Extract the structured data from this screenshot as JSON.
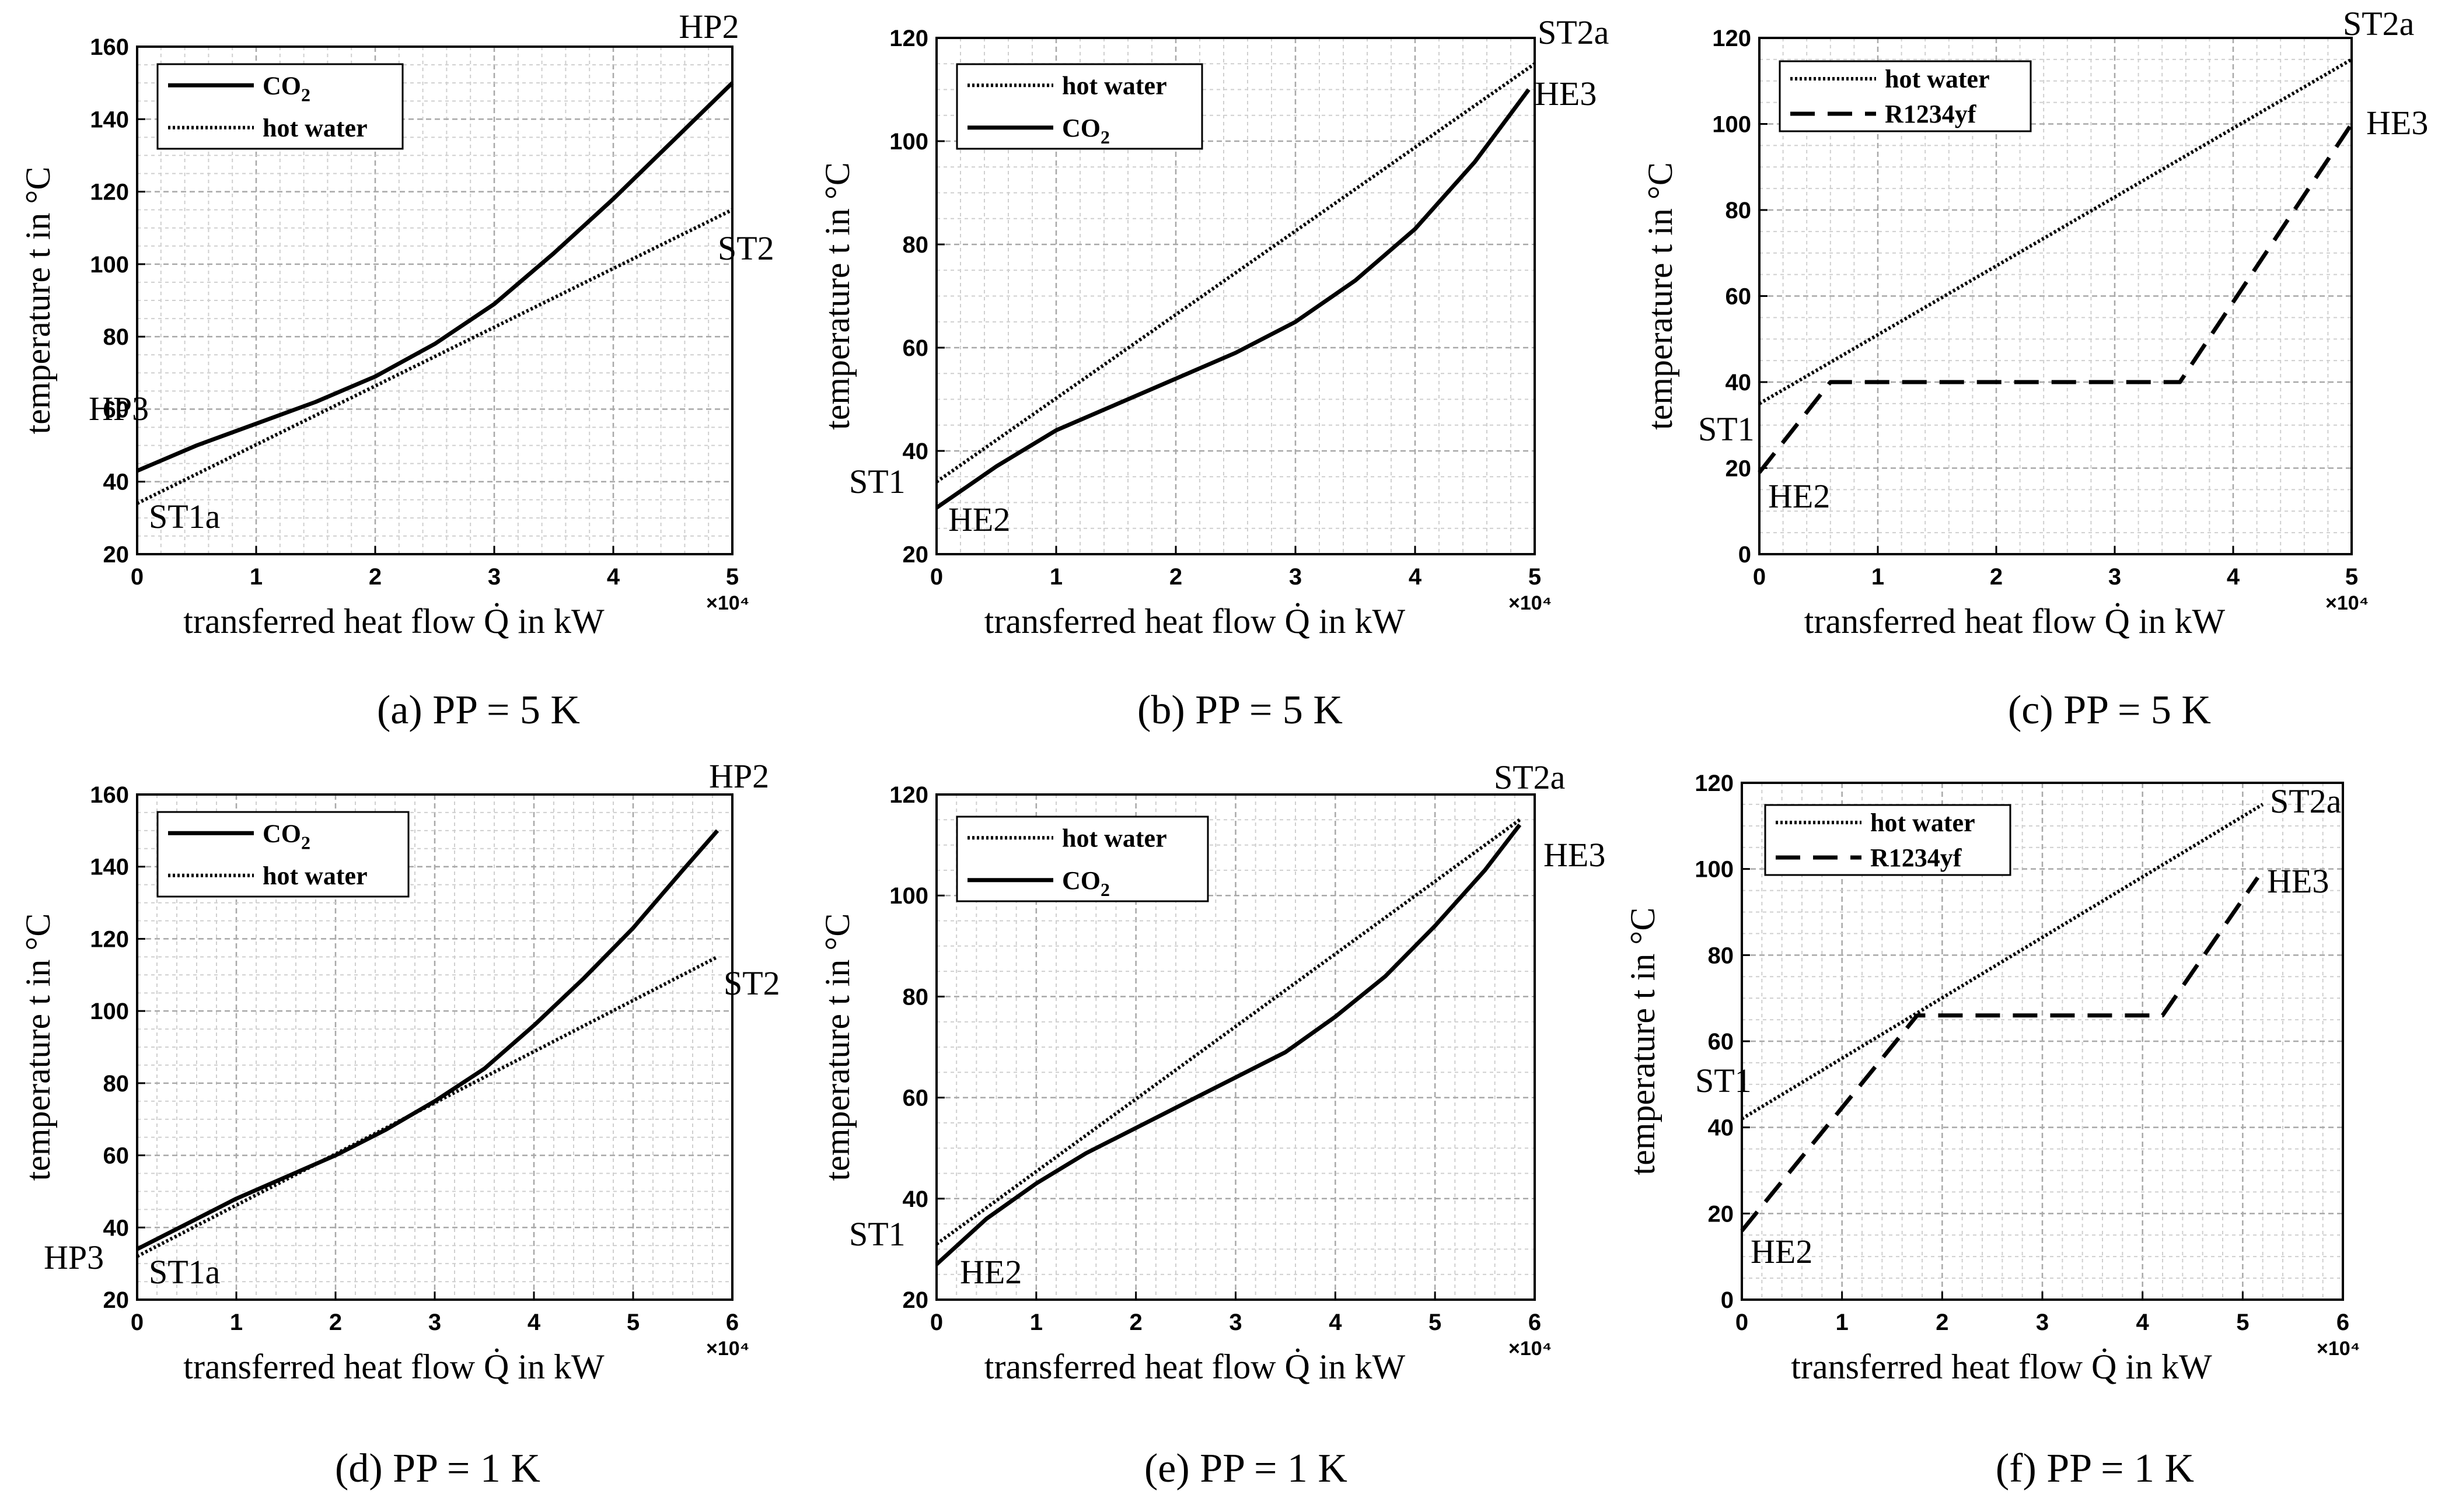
{
  "chart_data": [
    {
      "id": "a",
      "type": "line",
      "caption": "(a) PP = 5 K",
      "xlabel": "transferred heat flow Q̇ in kW",
      "ylabel": "temperature t in °C",
      "x_multiplier": "×10⁴",
      "xlim": [
        0,
        5
      ],
      "ylim": [
        20,
        160
      ],
      "xticks": [
        "0",
        "1",
        "2",
        "3",
        "4",
        "5"
      ],
      "yticks": [
        "20",
        "40",
        "60",
        "80",
        "100",
        "120",
        "140",
        "160"
      ],
      "series": [
        {
          "name": "CO₂",
          "style": "solid",
          "x": [
            0,
            0.5,
            1,
            1.5,
            2,
            2.5,
            3,
            3.5,
            4,
            4.5,
            5
          ],
          "y": [
            43,
            50,
            56,
            62,
            69,
            78,
            89,
            103,
            118,
            134,
            150
          ]
        },
        {
          "name": "hot water",
          "style": "dotted",
          "x": [
            0,
            5
          ],
          "y": [
            34,
            115
          ]
        }
      ],
      "annotations": [
        "HP2",
        "ST2",
        "HP3",
        "ST1a"
      ]
    },
    {
      "id": "b",
      "type": "line",
      "caption": "(b) PP = 5 K",
      "xlabel": "transferred heat flow Q̇ in kW",
      "ylabel": "temperature t in °C",
      "x_multiplier": "×10⁴",
      "xlim": [
        0,
        5
      ],
      "ylim": [
        20,
        120
      ],
      "xticks": [
        "0",
        "1",
        "2",
        "3",
        "4",
        "5"
      ],
      "yticks": [
        "20",
        "40",
        "60",
        "80",
        "100",
        "120"
      ],
      "series": [
        {
          "name": "hot water",
          "style": "dotted",
          "x": [
            0,
            5
          ],
          "y": [
            34,
            115
          ]
        },
        {
          "name": "CO₂",
          "style": "solid",
          "x": [
            0,
            0.5,
            1,
            1.5,
            2,
            2.5,
            3,
            3.5,
            4,
            4.5,
            4.95
          ],
          "y": [
            29,
            37,
            44,
            49,
            54,
            59,
            65,
            73,
            83,
            96,
            110
          ]
        }
      ],
      "annotations": [
        "ST2a",
        "HE3",
        "ST1",
        "HE2"
      ]
    },
    {
      "id": "c",
      "type": "line",
      "caption": "(c) PP =  5 K",
      "xlabel": "transferred heat flow Q̇ in kW",
      "ylabel": "temperature t in °C",
      "x_multiplier": "×10⁴",
      "xlim": [
        0,
        5
      ],
      "ylim": [
        0,
        120
      ],
      "xticks": [
        "0",
        "1",
        "2",
        "3",
        "4",
        "5"
      ],
      "yticks": [
        "0",
        "20",
        "40",
        "60",
        "80",
        "100",
        "120"
      ],
      "series": [
        {
          "name": "hot water",
          "style": "dotted",
          "x": [
            0,
            5
          ],
          "y": [
            35,
            115
          ]
        },
        {
          "name": "R1234yf",
          "style": "dashed",
          "x": [
            0,
            0.6,
            3.55,
            5
          ],
          "y": [
            19,
            40,
            40,
            100
          ]
        }
      ],
      "annotations": [
        "ST2a",
        "HE3",
        "ST1",
        "HE2"
      ]
    },
    {
      "id": "d",
      "type": "line",
      "caption": "(d) PP = 1 K",
      "xlabel": "transferred heat flow Q̇ in kW",
      "ylabel": "temperature t in °C",
      "x_multiplier": "×10⁴",
      "xlim": [
        0,
        6
      ],
      "ylim": [
        20,
        160
      ],
      "xticks": [
        "0",
        "1",
        "2",
        "3",
        "4",
        "5",
        "6"
      ],
      "yticks": [
        "20",
        "40",
        "60",
        "80",
        "100",
        "120",
        "140",
        "160"
      ],
      "series": [
        {
          "name": "CO₂",
          "style": "solid",
          "x": [
            0,
            0.5,
            1,
            1.5,
            2,
            2.5,
            3,
            3.5,
            4,
            4.5,
            5,
            5.5,
            5.85
          ],
          "y": [
            34,
            41,
            48,
            54,
            60,
            67,
            75,
            84,
            96,
            109,
            123,
            139,
            150
          ]
        },
        {
          "name": "hot water",
          "style": "dotted",
          "x": [
            0,
            5.85
          ],
          "y": [
            32,
            115
          ]
        }
      ],
      "annotations": [
        "HP2",
        "ST2",
        "HP3",
        "ST1a"
      ]
    },
    {
      "id": "e",
      "type": "line",
      "caption": "(e) PP = 1 K",
      "xlabel": "transferred heat flow Q̇ in kW",
      "ylabel": "temperature t in °C",
      "x_multiplier": "×10⁴",
      "xlim": [
        0,
        6
      ],
      "ylim": [
        20,
        120
      ],
      "xticks": [
        "0",
        "1",
        "2",
        "3",
        "4",
        "5",
        "6"
      ],
      "yticks": [
        "20",
        "40",
        "60",
        "80",
        "100",
        "120"
      ],
      "series": [
        {
          "name": "hot water",
          "style": "dotted",
          "x": [
            0,
            5.85
          ],
          "y": [
            31,
            115
          ]
        },
        {
          "name": "CO₂",
          "style": "solid",
          "x": [
            0,
            0.5,
            1,
            1.5,
            2,
            2.5,
            3,
            3.5,
            4,
            4.5,
            5,
            5.5,
            5.85
          ],
          "y": [
            27,
            36,
            43,
            49,
            54,
            59,
            64,
            69,
            76,
            84,
            94,
            105,
            114
          ]
        }
      ],
      "annotations": [
        "ST2a",
        "HE3",
        "ST1",
        "HE2"
      ]
    },
    {
      "id": "f",
      "type": "line",
      "caption": "(f) PP = 1 K",
      "xlabel": "transferred heat flow Q̇ in kW",
      "ylabel": "temperature t in °C",
      "x_multiplier": "×10⁴",
      "xlim": [
        0,
        6
      ],
      "ylim": [
        0,
        120
      ],
      "xticks": [
        "0",
        "1",
        "2",
        "3",
        "4",
        "5",
        "6"
      ],
      "yticks": [
        "0",
        "20",
        "40",
        "60",
        "80",
        "100",
        "120"
      ],
      "series": [
        {
          "name": "hot water",
          "style": "dotted",
          "x": [
            0,
            5.2
          ],
          "y": [
            42,
            115
          ]
        },
        {
          "name": "R1234yf",
          "style": "dashed",
          "x": [
            0,
            1.75,
            4.2,
            5.15
          ],
          "y": [
            16,
            66,
            66,
            98
          ]
        }
      ],
      "annotations": [
        "ST2a",
        "HE3",
        "ST1",
        "HE2"
      ]
    }
  ]
}
